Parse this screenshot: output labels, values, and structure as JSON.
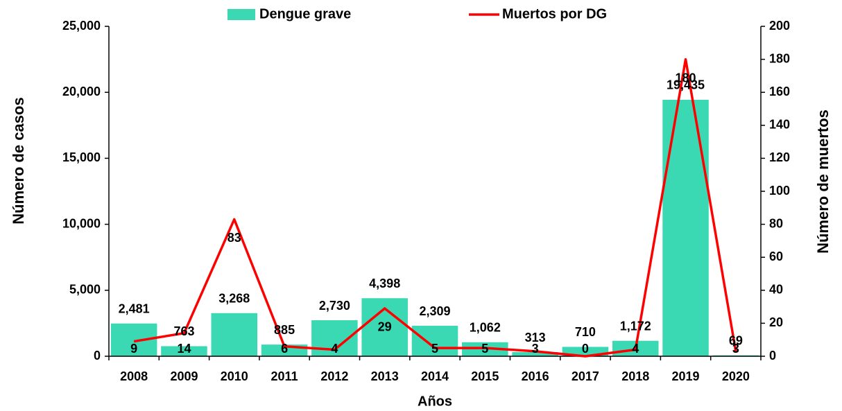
{
  "chart_data": {
    "type": "bar_line",
    "categories": [
      "2008",
      "2009",
      "2010",
      "2011",
      "2012",
      "2013",
      "2014",
      "2015",
      "2016",
      "2017",
      "2018",
      "2019",
      "2020"
    ],
    "series": [
      {
        "name": "Dengue grave",
        "type": "bar",
        "color": "#3ad9b3",
        "values": [
          2481,
          763,
          3268,
          885,
          2730,
          4398,
          2309,
          1062,
          313,
          710,
          1172,
          19435,
          69
        ],
        "value_labels": [
          "2,481",
          "763",
          "3,268",
          "885",
          "2,730",
          "4,398",
          "2,309",
          "1,062",
          "313",
          "710",
          "1,172",
          "19,435",
          "69"
        ]
      },
      {
        "name": "Muertos por DG",
        "type": "line",
        "axis": "y2",
        "color": "#ff0000",
        "values": [
          9,
          14,
          83,
          6,
          4,
          29,
          5,
          5,
          3,
          0,
          4,
          180,
          3
        ]
      }
    ],
    "y_label": "Número de casos",
    "y2_label": "Número de muertos",
    "x_label": "Años",
    "ylim": [
      0,
      25000
    ],
    "yticks": [
      0,
      {
        "value": 5000,
        "label": "5,000"
      },
      {
        "value": 10000,
        "label": "10,000"
      },
      {
        "value": 15000,
        "label": "15,000"
      },
      {
        "value": 20000,
        "label": "20,000"
      },
      {
        "value": 25000,
        "label": "25,000"
      }
    ],
    "y2lim": [
      0,
      200
    ],
    "y2ticks": [
      0,
      20,
      40,
      60,
      80,
      100,
      120,
      140,
      160,
      180,
      200
    ],
    "legend": "top"
  }
}
